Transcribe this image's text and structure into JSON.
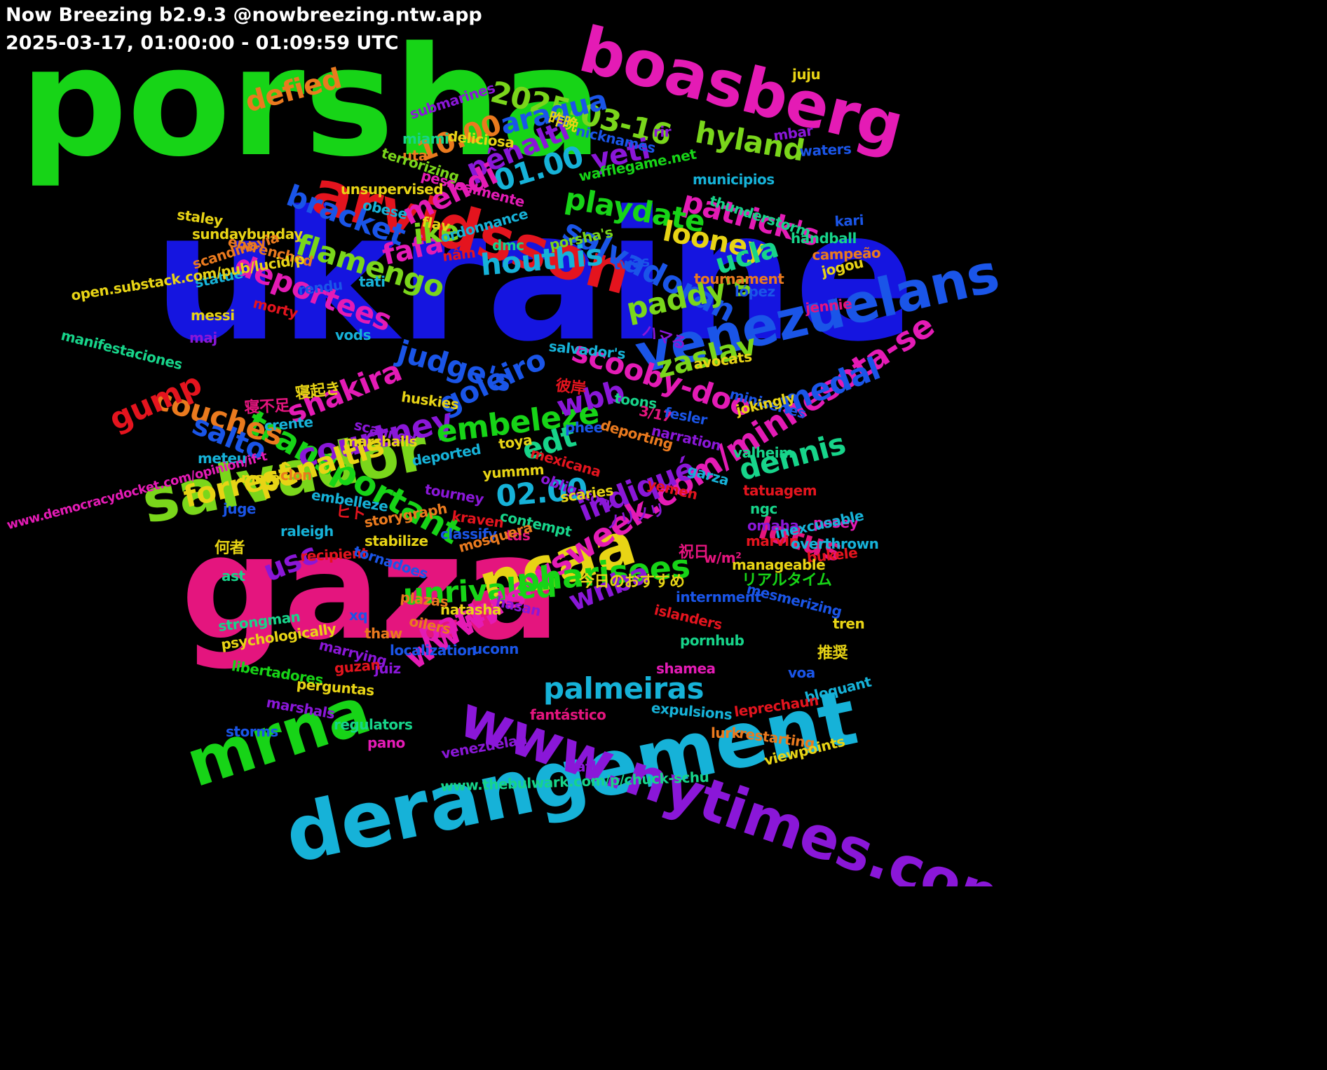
{
  "header": {
    "title": "Now Breezing b2.9.3 @nowbreezing.ntw.app",
    "range": "2025-03-17, 01:00:00 - 01:09:59 UTC"
  },
  "words": [
    {
      "text": "ukraine",
      "color": "#1515e0"
    },
    {
      "text": "porsha",
      "color": "#17d417"
    },
    {
      "text": "gaza",
      "color": "#e4157e"
    },
    {
      "text": "derangement",
      "color": "#16b2d8"
    },
    {
      "text": "www.nytimes.com/2025/03/16/u",
      "color": "#8a17d8"
    },
    {
      "text": "boasberg",
      "color": "#e41bb5"
    },
    {
      "text": "arvidsson",
      "color": "#e4141e"
    },
    {
      "text": "venezuelans",
      "color": "#1a55e8"
    },
    {
      "text": "salvador",
      "color": "#7ad61b"
    },
    {
      "text": "ncaa",
      "color": "#e8d415"
    },
    {
      "text": "mrna",
      "color": "#17d417"
    },
    {
      "text": "www.newsweek.com/minnesota-se",
      "color": "#e41bb5"
    },
    {
      "text": "transportant",
      "color": "#17d417"
    },
    {
      "text": "scooby-doo",
      "color": "#e41bb5"
    },
    {
      "text": "courtney",
      "color": "#8a17d8"
    },
    {
      "text": "salvadoran",
      "color": "#1a55e8"
    },
    {
      "text": "pharisees",
      "color": "#17d417"
    },
    {
      "text": "palmeiras",
      "color": "#16b2d8"
    },
    {
      "text": "unrivaled",
      "color": "#17d417"
    },
    {
      "text": "embeleze",
      "color": "#17d417"
    },
    {
      "text": "judge's",
      "color": "#1a55e8"
    },
    {
      "text": "indiqué",
      "color": "#8a17d8"
    },
    {
      "text": "deportees",
      "color": "#e41bb5"
    },
    {
      "text": "flamengo",
      "color": "#7ad61b"
    },
    {
      "text": "patrick's",
      "color": "#e41bb5"
    },
    {
      "text": "playdate",
      "color": "#17d417"
    },
    {
      "text": "couches",
      "color": "#ea7a1e"
    },
    {
      "text": "paddy's",
      "color": "#7ad61b"
    },
    {
      "text": "pênaltis",
      "color": "#e8d415"
    },
    {
      "text": "goleiro",
      "color": "#1a55e8"
    },
    {
      "text": "shakira",
      "color": "#e41bb5"
    },
    {
      "text": "houthis",
      "color": "#16b2d8"
    },
    {
      "text": "2025-03-16",
      "color": "#7ad61b"
    },
    {
      "text": "forrest",
      "color": "#e8d415"
    },
    {
      "text": "bracket",
      "color": "#1a55e8"
    },
    {
      "text": "patty's",
      "color": "#e41bb5"
    },
    {
      "text": "looney",
      "color": "#e8d415"
    },
    {
      "text": "hyland",
      "color": "#7ad61b"
    },
    {
      "text": "dennis",
      "color": "#17d48a"
    },
    {
      "text": "medal",
      "color": "#1a55e8"
    },
    {
      "text": "aragua",
      "color": "#1a55e8"
    },
    {
      "text": "pênalti",
      "color": "#8a17d8"
    },
    {
      "text": "zaslav",
      "color": "#7ad61b"
    },
    {
      "text": "10.00",
      "color": "#ea7a1e"
    },
    {
      "text": "01.00",
      "color": "#16b2d8"
    },
    {
      "text": "02.00",
      "color": "#16b2d8"
    },
    {
      "text": "lotus",
      "color": "#e4157e"
    },
    {
      "text": "mehdi",
      "color": "#e41bb5"
    },
    {
      "text": "gump",
      "color": "#e4141e"
    },
    {
      "text": "salto",
      "color": "#1a55e8"
    },
    {
      "text": "wnba",
      "color": "#8a17d8"
    },
    {
      "text": "fafa",
      "color": "#e41bb5"
    },
    {
      "text": "defied",
      "color": "#ea7a1e"
    },
    {
      "text": "ucla",
      "color": "#17d48a"
    },
    {
      "text": "ike",
      "color": "#7ad61b"
    },
    {
      "text": "yeti",
      "color": "#8a17d8"
    },
    {
      "text": "wbb",
      "color": "#8a17d8"
    },
    {
      "text": "edt",
      "color": "#17d48a"
    },
    {
      "text": "usc",
      "color": "#8a17d8"
    },
    {
      "text": "昨晩",
      "color": "#e8d415"
    },
    {
      "text": "submarines",
      "color": "#8a17d8"
    },
    {
      "text": "juju",
      "color": "#e8d415"
    },
    {
      "text": "nicknames",
      "color": "#1a55e8"
    },
    {
      "text": "rir",
      "color": "#8a17d8"
    },
    {
      "text": "deliciosa",
      "color": "#e8d415"
    },
    {
      "text": "mbar",
      "color": "#8a17d8"
    },
    {
      "text": "waters",
      "color": "#1a55e8"
    },
    {
      "text": "miami",
      "color": "#17d48a"
    },
    {
      "text": "uta",
      "color": "#ea7a1e"
    },
    {
      "text": "terrorizing",
      "color": "#7ad61b"
    },
    {
      "text": "pessoalmente",
      "color": "#e41bb5"
    },
    {
      "text": "wafflegame.net",
      "color": "#17d417"
    },
    {
      "text": "municipios",
      "color": "#16b2d8"
    },
    {
      "text": "thunderstorm",
      "color": "#17d48a"
    },
    {
      "text": "staley",
      "color": "#e8d415"
    },
    {
      "text": "unsupervised",
      "color": "#e8d415"
    },
    {
      "text": "kari",
      "color": "#1a55e8"
    },
    {
      "text": "obese",
      "color": "#16b2d8"
    },
    {
      "text": "handball",
      "color": "#17d48a"
    },
    {
      "text": "sundaybunday",
      "color": "#e8d415"
    },
    {
      "text": "flav",
      "color": "#e8d415"
    },
    {
      "text": "entrenched",
      "color": "#ea7a1e"
    },
    {
      "text": "ordonnance",
      "color": "#16b2d8"
    },
    {
      "text": "porsha's",
      "color": "#7ad61b"
    },
    {
      "text": "campeão",
      "color": "#ea7a1e"
    },
    {
      "text": "dmc",
      "color": "#17d48a"
    },
    {
      "text": "scandinavia",
      "color": "#ea7a1e"
    },
    {
      "text": "nâm",
      "color": "#e4141e"
    },
    {
      "text": "statue",
      "color": "#16b2d8"
    },
    {
      "text": "twas",
      "color": "#1a55e8"
    },
    {
      "text": "jogou",
      "color": "#e8d415"
    },
    {
      "text": "tournament",
      "color": "#ea7a1e"
    },
    {
      "text": "open.substack.com/pub/lucid/p",
      "color": "#e8d415"
    },
    {
      "text": "tati",
      "color": "#16b2d8"
    },
    {
      "text": "rendu",
      "color": "#1a55e8"
    },
    {
      "text": "lópez",
      "color": "#1a55e8"
    },
    {
      "text": "morty",
      "color": "#e4141e"
    },
    {
      "text": "messi",
      "color": "#e8d415"
    },
    {
      "text": "jennie",
      "color": "#e4157e"
    },
    {
      "text": "ハマる",
      "color": "#8a17d8"
    },
    {
      "text": "manifestaciones",
      "color": "#17d48a"
    },
    {
      "text": "maj",
      "color": "#8a17d8"
    },
    {
      "text": "vods",
      "color": "#16b2d8"
    },
    {
      "text": "salvador's",
      "color": "#16b2d8"
    },
    {
      "text": "avocats",
      "color": "#e8d415"
    },
    {
      "text": "彼岸",
      "color": "#e4141e"
    },
    {
      "text": "寝起き",
      "color": "#e8d415"
    },
    {
      "text": "寝不足",
      "color": "#e4157e"
    },
    {
      "text": "huskies",
      "color": "#e8d415"
    },
    {
      "text": "toons",
      "color": "#17d48a"
    },
    {
      "text": "miniseries",
      "color": "#1a55e8"
    },
    {
      "text": "3/17",
      "color": "#e4157e"
    },
    {
      "text": "jokingly",
      "color": "#e8d415"
    },
    {
      "text": "fesler",
      "color": "#1a55e8"
    },
    {
      "text": "crente",
      "color": "#16b2d8"
    },
    {
      "text": "scanned",
      "color": "#8a17d8"
    },
    {
      "text": "marshalls",
      "color": "#e8d415"
    },
    {
      "text": "phee",
      "color": "#1a55e8"
    },
    {
      "text": "deporting",
      "color": "#ea7a1e"
    },
    {
      "text": "narration",
      "color": "#8a17d8"
    },
    {
      "text": "toya",
      "color": "#e8d415"
    },
    {
      "text": "meteu",
      "color": "#16b2d8"
    },
    {
      "text": "valheim",
      "color": "#17d48a"
    },
    {
      "text": "deported",
      "color": "#16b2d8"
    },
    {
      "text": "mexicana",
      "color": "#e4141e"
    },
    {
      "text": "garza",
      "color": "#16b2d8"
    },
    {
      "text": "mater",
      "color": "#e8d415"
    },
    {
      "text": "clon",
      "color": "#ea7a1e"
    },
    {
      "text": "yummm",
      "color": "#e8d415"
    },
    {
      "text": "yemen",
      "color": "#e4141e"
    },
    {
      "text": "tatuagem",
      "color": "#e4141e"
    },
    {
      "text": "obligatory",
      "color": "#8a17d8"
    },
    {
      "text": "tourney",
      "color": "#8a17d8"
    },
    {
      "text": "embelleze",
      "color": "#16b2d8"
    },
    {
      "text": "scaries",
      "color": "#e8d415"
    },
    {
      "text": "www.democracydocket.com/opinion/if-t",
      "color": "#e41bb5"
    },
    {
      "text": "ngc",
      "color": "#17d48a"
    },
    {
      "text": "juge",
      "color": "#1a55e8"
    },
    {
      "text": "posey",
      "color": "#e41bb5"
    },
    {
      "text": "ヒト",
      "color": "#e4141e"
    },
    {
      "text": "storygraph",
      "color": "#ea7a1e"
    },
    {
      "text": "contempt",
      "color": "#17d48a"
    },
    {
      "text": "omaha",
      "color": "#8a17d8"
    },
    {
      "text": "raleigh",
      "color": "#16b2d8"
    },
    {
      "text": "kraven",
      "color": "#e4141e"
    },
    {
      "text": "classify",
      "color": "#1a55e8"
    },
    {
      "text": "inexcusable",
      "color": "#16b2d8"
    },
    {
      "text": "tds",
      "color": "#e4157e"
    },
    {
      "text": "marvin",
      "color": "#e4141e"
    },
    {
      "text": "ノリノリ",
      "color": "#8a17d8"
    },
    {
      "text": "mosquera",
      "color": "#ea7a1e"
    },
    {
      "text": "bukele",
      "color": "#e4141e"
    },
    {
      "text": "stabilize",
      "color": "#e8d415"
    },
    {
      "text": "recipient",
      "color": "#e4141e"
    },
    {
      "text": "overthrown",
      "color": "#16b2d8"
    },
    {
      "text": "何者",
      "color": "#e8d415"
    },
    {
      "text": "tornadoes",
      "color": "#1a55e8"
    },
    {
      "text": "w/m²",
      "color": "#e4157e"
    },
    {
      "text": "祝日",
      "color": "#e4157e"
    },
    {
      "text": "manageable",
      "color": "#e8d415"
    },
    {
      "text": "ast",
      "color": "#17d48a"
    },
    {
      "text": "今日のおすすめ",
      "color": "#e8d415"
    },
    {
      "text": "リアルタイム",
      "color": "#17d417"
    },
    {
      "text": "internment",
      "color": "#1a55e8"
    },
    {
      "text": "mesmerizing",
      "color": "#1a55e8"
    },
    {
      "text": "plazas",
      "color": "#ea7a1e"
    },
    {
      "text": "hasan",
      "color": "#8a17d8"
    },
    {
      "text": "natasha",
      "color": "#e8d415"
    },
    {
      "text": "xq",
      "color": "#1a55e8"
    },
    {
      "text": "tren",
      "color": "#e8d415"
    },
    {
      "text": "islanders",
      "color": "#e4141e"
    },
    {
      "text": "strongman",
      "color": "#17d48a"
    },
    {
      "text": "oilers",
      "color": "#ea7a1e"
    },
    {
      "text": "thaw",
      "color": "#ea7a1e"
    },
    {
      "text": "pornhub",
      "color": "#17d48a"
    },
    {
      "text": "psychologically",
      "color": "#e8d415"
    },
    {
      "text": "marrying",
      "color": "#8a17d8"
    },
    {
      "text": "localization",
      "color": "#1a55e8"
    },
    {
      "text": "uconn",
      "color": "#1a55e8"
    },
    {
      "text": "推奨",
      "color": "#e8d415"
    },
    {
      "text": "juiz",
      "color": "#8a17d8"
    },
    {
      "text": "guzan",
      "color": "#e4141e"
    },
    {
      "text": "libertadores",
      "color": "#17d417"
    },
    {
      "text": "shamea",
      "color": "#e41bb5"
    },
    {
      "text": "voa",
      "color": "#1a55e8"
    },
    {
      "text": "perguntas",
      "color": "#e8d415"
    },
    {
      "text": "bloquant",
      "color": "#16b2d8"
    },
    {
      "text": "expulsions",
      "color": "#16b2d8"
    },
    {
      "text": "marshals",
      "color": "#8a17d8"
    },
    {
      "text": "fantástico",
      "color": "#e4157e"
    },
    {
      "text": "leprechaun",
      "color": "#e4141e"
    },
    {
      "text": "regulators",
      "color": "#17d48a"
    },
    {
      "text": "storms",
      "color": "#1a55e8"
    },
    {
      "text": "lurk",
      "color": "#ea7a1e"
    },
    {
      "text": "restarting",
      "color": "#ea7a1e"
    },
    {
      "text": "pano",
      "color": "#e41bb5"
    },
    {
      "text": "venezuelan",
      "color": "#8a17d8"
    },
    {
      "text": "viewpoints",
      "color": "#e8d415"
    },
    {
      "text": "atl",
      "color": "#8a17d8"
    },
    {
      "text": "www.thebulwark.com/p/chuck-schu",
      "color": "#17d48a"
    }
  ]
}
